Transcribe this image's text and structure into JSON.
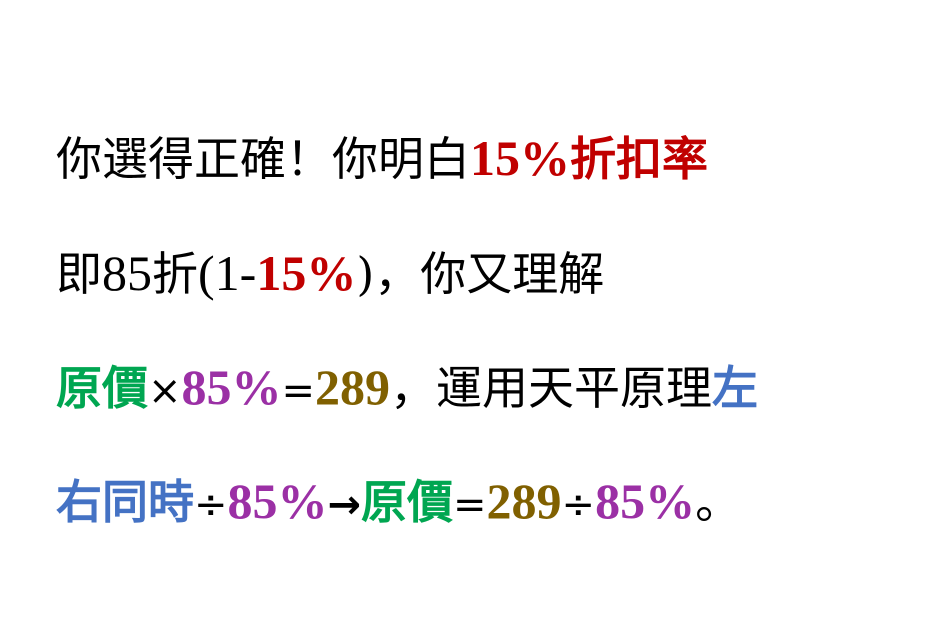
{
  "colors": {
    "black": "#000000",
    "red": "#c00000",
    "green": "#00a651",
    "purple": "#9b30a5",
    "olive": "#806000",
    "blue": "#4472c4"
  },
  "line1": {
    "a": "你選得正確！你明白",
    "b": "15%",
    "c": "折扣率"
  },
  "line2": {
    "a": "即",
    "b": "85",
    "c": "折",
    "d": "(1-",
    "e": "15%",
    "f": ")，你又理解"
  },
  "line3": {
    "a": "原價",
    "b": "×",
    "c": "85%",
    "d": "=",
    "e": "289",
    "f": "，運用天平原理",
    "g": "左"
  },
  "line4": {
    "a": "右同時",
    "b": "÷",
    "c": "85%",
    "d": "→",
    "e": "原價",
    "f": "=",
    "g": "289",
    "h": "÷",
    "i": "85%",
    "j": "。"
  }
}
